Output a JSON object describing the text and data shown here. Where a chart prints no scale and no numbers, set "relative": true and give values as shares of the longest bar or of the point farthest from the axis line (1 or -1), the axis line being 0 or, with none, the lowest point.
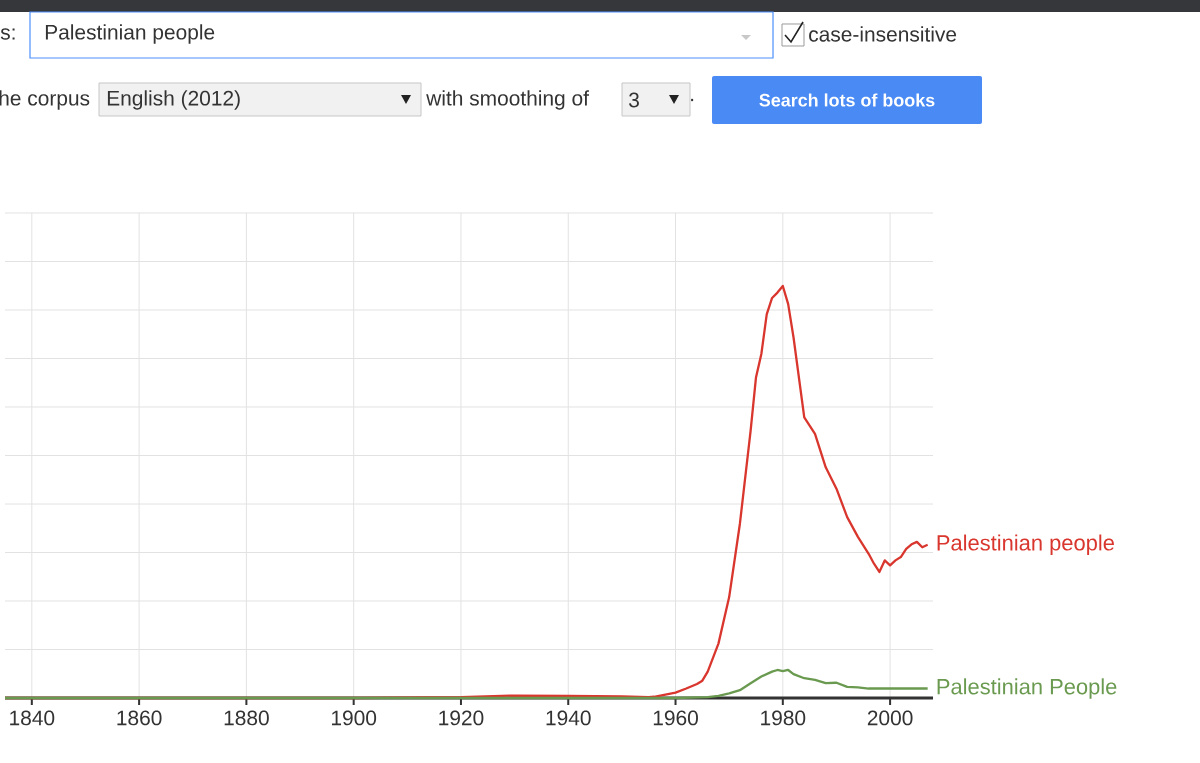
{
  "chart_data": {
    "type": "line",
    "relative": true,
    "grid": true,
    "line_style": "solid",
    "xlim": [
      1835,
      2008
    ],
    "xticks": [
      1840,
      1860,
      1880,
      1900,
      1920,
      1940,
      1960,
      1980,
      2000
    ],
    "series": [
      {
        "name": "Palestinian people",
        "color": "#d9362e",
        "x": [
          1835,
          1900,
          1920,
          1930,
          1940,
          1950,
          1955,
          1956,
          1960,
          1962,
          1964,
          1965,
          1966,
          1968,
          1970,
          1972,
          1974,
          1975,
          1976,
          1977,
          1978,
          1979,
          1980,
          1981,
          1982,
          1984,
          1986,
          1988,
          1990,
          1992,
          1994,
          1996,
          1997,
          1998,
          1999,
          2000,
          2001,
          2002,
          2003,
          2004,
          2005,
          2006,
          2007
        ],
        "values": [
          0,
          0,
          0.002,
          0.006,
          0.005,
          0.004,
          0.002,
          0.003,
          0.013,
          0.023,
          0.034,
          0.042,
          0.064,
          0.132,
          0.245,
          0.423,
          0.649,
          0.778,
          0.835,
          0.931,
          0.971,
          0.984,
          1.0,
          0.956,
          0.875,
          0.681,
          0.641,
          0.56,
          0.508,
          0.439,
          0.391,
          0.35,
          0.326,
          0.306,
          0.334,
          0.322,
          0.334,
          0.342,
          0.362,
          0.373,
          0.379,
          0.366,
          0.372
        ]
      },
      {
        "name": "Palestinian People",
        "color": "#6a9a4f",
        "x": [
          1835,
          1960,
          1966,
          1968,
          1970,
          1972,
          1974,
          1976,
          1978,
          1979,
          1980,
          1981,
          1982,
          1984,
          1986,
          1988,
          1990,
          1992,
          1994,
          1996,
          2000,
          2004,
          2007
        ],
        "values": [
          0,
          0,
          0.002,
          0.005,
          0.011,
          0.019,
          0.036,
          0.052,
          0.064,
          0.068,
          0.065,
          0.068,
          0.058,
          0.048,
          0.044,
          0.036,
          0.037,
          0.027,
          0.026,
          0.023,
          0.023,
          0.023,
          0.023
        ]
      }
    ],
    "annotations": [
      "s:",
      "Palestinian people",
      "case-insensitive",
      "he corpus",
      "English (2012)",
      "with smoothing of",
      "3",
      ".",
      "Search lots of books"
    ]
  }
}
